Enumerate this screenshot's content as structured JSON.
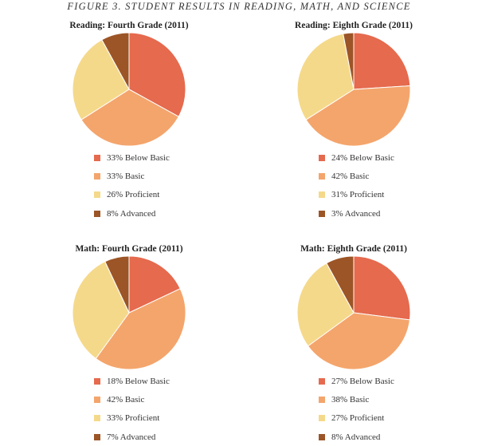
{
  "figure_title": "FIGURE 3. STUDENT RESULTS IN READING, MATH, AND SCIENCE",
  "colors": {
    "Below Basic": "#e56a4e",
    "Basic": "#f4a56c",
    "Proficient": "#f5d98a",
    "Advanced": "#9c5526"
  },
  "chart_data": [
    {
      "type": "pie",
      "title": "Reading: Fourth Grade (2011)",
      "slices": [
        {
          "label": "Below Basic",
          "value": 33,
          "text": "33% Below Basic"
        },
        {
          "label": "Basic",
          "value": 33,
          "text": "33% Basic"
        },
        {
          "label": "Proficient",
          "value": 26,
          "text": "26% Proficient"
        },
        {
          "label": "Advanced",
          "value": 8,
          "text": "8% Advanced"
        }
      ],
      "legend_position": "bottom"
    },
    {
      "type": "pie",
      "title": "Reading: Eighth Grade (2011)",
      "slices": [
        {
          "label": "Below Basic",
          "value": 24,
          "text": "24% Below Basic"
        },
        {
          "label": "Basic",
          "value": 42,
          "text": "42% Basic"
        },
        {
          "label": "Proficient",
          "value": 31,
          "text": "31% Proficient"
        },
        {
          "label": "Advanced",
          "value": 3,
          "text": "3% Advanced"
        }
      ],
      "legend_position": "bottom"
    },
    {
      "type": "pie",
      "title": "Math: Fourth Grade (2011)",
      "slices": [
        {
          "label": "Below Basic",
          "value": 18,
          "text": "18% Below Basic"
        },
        {
          "label": "Basic",
          "value": 42,
          "text": "42% Basic"
        },
        {
          "label": "Proficient",
          "value": 33,
          "text": "33% Proficient"
        },
        {
          "label": "Advanced",
          "value": 7,
          "text": "7% Advanced"
        }
      ],
      "legend_position": "bottom"
    },
    {
      "type": "pie",
      "title": "Math: Eighth Grade (2011)",
      "slices": [
        {
          "label": "Below Basic",
          "value": 27,
          "text": "27% Below Basic"
        },
        {
          "label": "Basic",
          "value": 38,
          "text": "38% Basic"
        },
        {
          "label": "Proficient",
          "value": 27,
          "text": "27% Proficient"
        },
        {
          "label": "Advanced",
          "value": 8,
          "text": "8% Advanced"
        }
      ],
      "legend_position": "bottom"
    }
  ]
}
